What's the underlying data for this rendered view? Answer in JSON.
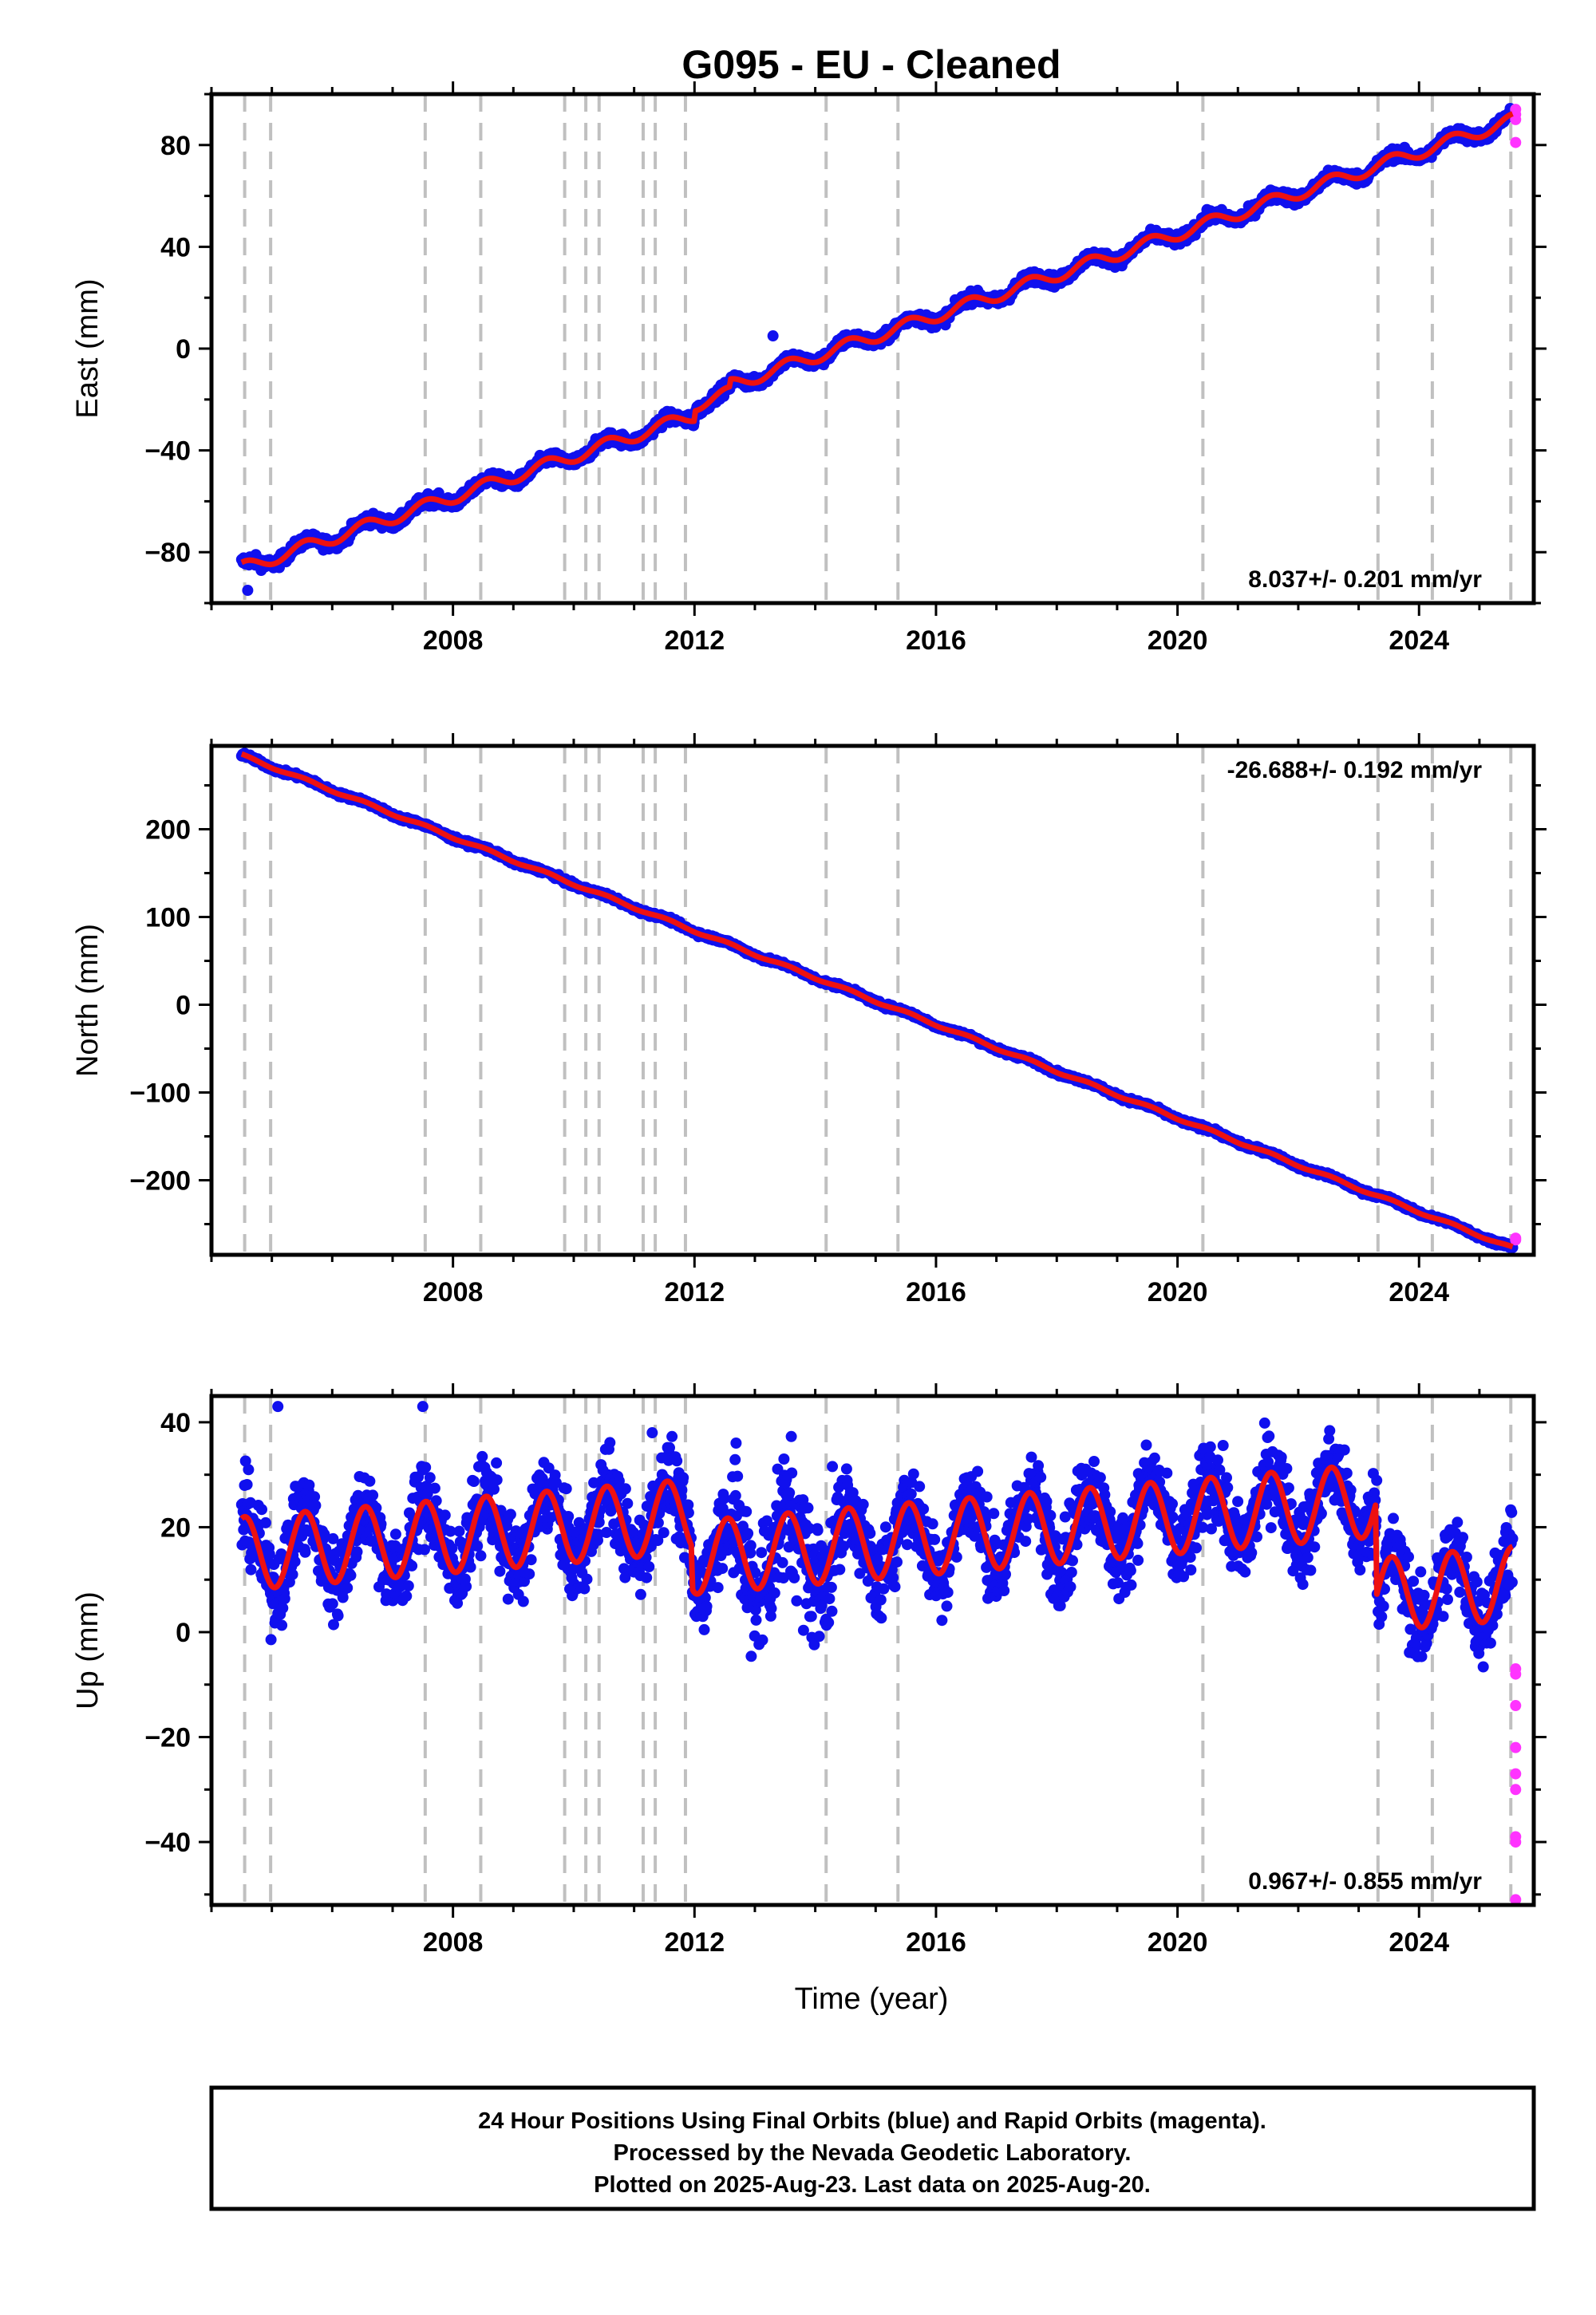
{
  "title": "G095  - EU - Cleaned",
  "colors": {
    "final_orbits": "#1010ee",
    "rapid_orbits": "#ff33ff",
    "model": "#ee1111",
    "event_lines": "#c0c0c0"
  },
  "events": [
    2004.55,
    2004.98,
    2007.54,
    2008.46,
    2009.85,
    2010.2,
    2010.42,
    2011.15,
    2011.35,
    2011.85,
    2014.18,
    2015.37,
    2020.42,
    2023.32,
    2024.22,
    2025.52
  ],
  "xticks": [
    2008,
    2012,
    2016,
    2020,
    2024
  ],
  "xlabel": "Time (year)",
  "chart_data": [
    {
      "type": "scatter",
      "panel": "east",
      "ylabel": "East (mm)",
      "xlim": [
        2004.0,
        2025.9
      ],
      "ylim": [
        -100,
        100
      ],
      "yticks": [
        -80,
        -40,
        0,
        40,
        80
      ],
      "rate_label": "8.037+/- 0.201 mm/yr",
      "rate_position": "bottom-right",
      "rate_mm_per_yr": 8.037,
      "start_mm": -86,
      "seasonal_amplitude_mm": 2.5,
      "noise_mm": 1.6,
      "offsets": [
        {
          "x": 2012.0,
          "dy": 4
        },
        {
          "x": 2012.6,
          "dy": 3
        }
      ],
      "rapid_points": [
        {
          "x": 2025.6,
          "y": 94
        },
        {
          "x": 2025.6,
          "y": 92
        },
        {
          "x": 2025.6,
          "y": 90
        },
        {
          "x": 2025.6,
          "y": 81
        }
      ],
      "outliers": [
        {
          "x": 2013.3,
          "y": 5
        },
        {
          "x": 2004.6,
          "y": -95
        }
      ]
    },
    {
      "type": "scatter",
      "panel": "north",
      "ylabel": "North (mm)",
      "xlim": [
        2004.0,
        2025.9
      ],
      "ylim": [
        -285,
        295
      ],
      "yticks": [
        -200,
        -100,
        0,
        100,
        200
      ],
      "rate_label": "-26.688+/- 0.192 mm/yr",
      "rate_position": "top-right",
      "rate_mm_per_yr": -26.688,
      "start_mm": 283,
      "seasonal_amplitude_mm": 1.5,
      "noise_mm": 1.8,
      "offsets": [],
      "rapid_points": [
        {
          "x": 2025.6,
          "y": -266
        },
        {
          "x": 2025.6,
          "y": -268
        }
      ],
      "outliers": []
    },
    {
      "type": "scatter",
      "panel": "up",
      "ylabel": "Up (mm)",
      "xlim": [
        2004.0,
        2025.9
      ],
      "ylim": [
        -52,
        45
      ],
      "yticks": [
        -40,
        -20,
        0,
        20,
        40
      ],
      "rate_label": "0.967+/- 0.855 mm/yr",
      "rate_position": "bottom-right",
      "rate_mm_per_yr": 0.967,
      "start_mm": 15,
      "seasonal_amplitude_mm": 7,
      "noise_mm": 5.5,
      "offsets": [
        {
          "x": 2011.95,
          "dy": -8
        },
        {
          "x": 2023.3,
          "dy": -18
        }
      ],
      "rapid_points": [
        {
          "x": 2025.6,
          "y": -7
        },
        {
          "x": 2025.6,
          "y": -8
        },
        {
          "x": 2025.6,
          "y": -14
        },
        {
          "x": 2025.6,
          "y": -22
        },
        {
          "x": 2025.6,
          "y": -27
        },
        {
          "x": 2025.6,
          "y": -30
        },
        {
          "x": 2025.6,
          "y": -39
        },
        {
          "x": 2025.6,
          "y": -40
        },
        {
          "x": 2025.6,
          "y": -51
        }
      ],
      "outliers": [
        {
          "x": 2005.1,
          "y": 43
        },
        {
          "x": 2007.5,
          "y": 43
        },
        {
          "x": 2011.3,
          "y": 38
        },
        {
          "x": 2021.55,
          "y": 30
        },
        {
          "x": 2022.5,
          "y": 29
        },
        {
          "x": 2024.4,
          "y": 3
        }
      ]
    }
  ],
  "footer": [
    "24 Hour Positions Using Final Orbits (blue) and Rapid Orbits (magenta).",
    "Processed by the Nevada Geodetic Laboratory.",
    "Plotted on 2025-Aug-23. Last data on 2025-Aug-20."
  ]
}
